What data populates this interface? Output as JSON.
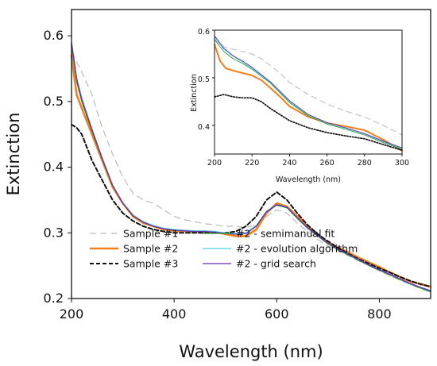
{
  "chart_data": [
    {
      "id": "main",
      "type": "line",
      "xlabel": "Wavelength (nm)",
      "ylabel": "Extinction",
      "xlim": [
        200,
        900
      ],
      "ylim": [
        0.2,
        0.64
      ],
      "xticks": [
        "200",
        "400",
        "600",
        "800"
      ],
      "yticks": [
        "0.2",
        "0.3",
        "0.4",
        "0.5",
        "0.6"
      ],
      "legend_position": "bottom-center",
      "series": [
        {
          "name": "Sample #1",
          "color": "#bbbbbb",
          "dash": "dashed",
          "width": 1.2,
          "x": [
            200,
            210,
            220,
            240,
            260,
            280,
            300,
            320,
            340,
            360,
            380,
            400,
            420,
            440,
            460,
            480,
            500,
            520,
            540,
            560,
            580,
            600,
            620,
            640,
            660,
            680,
            700,
            720,
            740,
            760,
            780,
            800,
            820,
            840,
            860,
            880,
            900
          ],
          "y": [
            0.575,
            0.56,
            0.545,
            0.51,
            0.46,
            0.42,
            0.385,
            0.36,
            0.35,
            0.345,
            0.335,
            0.325,
            0.32,
            0.317,
            0.314,
            0.312,
            0.31,
            0.31,
            0.308,
            0.312,
            0.325,
            0.335,
            0.33,
            0.315,
            0.302,
            0.29,
            0.28,
            0.272,
            0.265,
            0.257,
            0.25,
            0.242,
            0.235,
            0.228,
            0.222,
            0.215,
            0.21
          ]
        },
        {
          "name": "Sample #2",
          "color": "#f57f17",
          "dash": "solid",
          "width": 2.6,
          "x": [
            200,
            210,
            220,
            240,
            260,
            280,
            300,
            320,
            340,
            360,
            380,
            400,
            420,
            440,
            460,
            480,
            500,
            520,
            540,
            560,
            580,
            600,
            620,
            640,
            660,
            680,
            700,
            720,
            740,
            760,
            780,
            800,
            820,
            840,
            860,
            880,
            900
          ],
          "y": [
            0.57,
            0.51,
            0.49,
            0.45,
            0.41,
            0.37,
            0.345,
            0.325,
            0.315,
            0.31,
            0.305,
            0.303,
            0.303,
            0.302,
            0.302,
            0.301,
            0.298,
            0.295,
            0.295,
            0.305,
            0.33,
            0.345,
            0.34,
            0.325,
            0.31,
            0.298,
            0.285,
            0.277,
            0.27,
            0.262,
            0.255,
            0.248,
            0.24,
            0.233,
            0.226,
            0.222,
            0.218
          ]
        },
        {
          "name": "Sample #3",
          "color": "#111111",
          "dash": "dashed-thick",
          "width": 2.0,
          "x": [
            200,
            210,
            220,
            230,
            240,
            260,
            280,
            300,
            320,
            340,
            360,
            380,
            400,
            420,
            440,
            460,
            480,
            500,
            520,
            540,
            560,
            580,
            600,
            620,
            640,
            660,
            680,
            700,
            720,
            740,
            760,
            780,
            800,
            820,
            840,
            860,
            880,
            900
          ],
          "y": [
            0.465,
            0.46,
            0.45,
            0.43,
            0.41,
            0.38,
            0.35,
            0.33,
            0.318,
            0.31,
            0.305,
            0.302,
            0.3,
            0.3,
            0.3,
            0.3,
            0.3,
            0.3,
            0.302,
            0.31,
            0.325,
            0.35,
            0.362,
            0.35,
            0.33,
            0.312,
            0.298,
            0.287,
            0.277,
            0.268,
            0.26,
            0.253,
            0.246,
            0.24,
            0.233,
            0.227,
            0.222,
            0.218
          ]
        },
        {
          "name": "#2 - semimanual fit",
          "color": "#2e9a3a",
          "dash": "solid",
          "width": 1.3,
          "x": [
            200,
            210,
            220,
            240,
            260,
            280,
            300,
            320,
            340,
            360,
            380,
            400,
            420,
            440,
            460,
            480,
            500,
            520,
            540,
            560,
            580,
            600,
            620,
            640,
            660,
            680,
            700,
            720,
            740,
            760,
            780,
            800,
            820,
            840,
            860,
            880,
            900
          ],
          "y": [
            0.585,
            0.53,
            0.5,
            0.455,
            0.412,
            0.372,
            0.345,
            0.326,
            0.316,
            0.31,
            0.306,
            0.304,
            0.303,
            0.302,
            0.302,
            0.301,
            0.299,
            0.298,
            0.299,
            0.31,
            0.332,
            0.342,
            0.338,
            0.322,
            0.307,
            0.295,
            0.283,
            0.274,
            0.266,
            0.258,
            0.25,
            0.243,
            0.236,
            0.229,
            0.222,
            0.216,
            0.21
          ]
        },
        {
          "name": "#2 - evolution algorithm",
          "color": "#45d3e6",
          "dash": "solid",
          "width": 1.3,
          "x": [
            200,
            210,
            220,
            240,
            260,
            280,
            300,
            320,
            340,
            360,
            380,
            400,
            420,
            440,
            460,
            480,
            500,
            520,
            540,
            560,
            580,
            600,
            620,
            640,
            660,
            680,
            700,
            720,
            740,
            760,
            780,
            800,
            820,
            840,
            860,
            880,
            900
          ],
          "y": [
            0.588,
            0.535,
            0.505,
            0.458,
            0.414,
            0.373,
            0.346,
            0.327,
            0.317,
            0.311,
            0.307,
            0.305,
            0.304,
            0.303,
            0.303,
            0.302,
            0.3,
            0.299,
            0.3,
            0.311,
            0.333,
            0.343,
            0.339,
            0.323,
            0.308,
            0.296,
            0.284,
            0.275,
            0.267,
            0.259,
            0.251,
            0.244,
            0.237,
            0.23,
            0.223,
            0.217,
            0.212
          ]
        },
        {
          "name": "#2 - grid search",
          "color": "#6a2fb0",
          "dash": "solid",
          "width": 1.3,
          "x": [
            200,
            210,
            220,
            240,
            260,
            280,
            300,
            320,
            340,
            360,
            380,
            400,
            420,
            440,
            460,
            480,
            500,
            520,
            540,
            560,
            580,
            600,
            620,
            640,
            660,
            680,
            700,
            720,
            740,
            760,
            780,
            800,
            820,
            840,
            860,
            880,
            900
          ],
          "y": [
            0.59,
            0.535,
            0.503,
            0.457,
            0.413,
            0.372,
            0.345,
            0.326,
            0.316,
            0.31,
            0.306,
            0.304,
            0.303,
            0.302,
            0.302,
            0.301,
            0.299,
            0.298,
            0.299,
            0.31,
            0.332,
            0.343,
            0.339,
            0.323,
            0.308,
            0.296,
            0.284,
            0.275,
            0.267,
            0.259,
            0.251,
            0.244,
            0.237,
            0.23,
            0.223,
            0.217,
            0.212
          ]
        }
      ]
    },
    {
      "id": "inset",
      "type": "line",
      "xlabel": "Wavelength (nm)",
      "ylabel": "Extinction",
      "xlim": [
        200,
        300
      ],
      "ylim": [
        0.34,
        0.6
      ],
      "xticks": [
        "200",
        "220",
        "240",
        "260",
        "280",
        "300"
      ],
      "yticks": [
        "0.4",
        "0.5",
        "0.6"
      ],
      "legend_position": "none",
      "series": [
        {
          "name": "Sample #1",
          "color": "#bbbbbb",
          "dash": "dashed",
          "width": 1.0,
          "x": [
            200,
            205,
            210,
            215,
            220,
            225,
            230,
            235,
            240,
            250,
            260,
            270,
            280,
            290,
            300
          ],
          "y": [
            0.58,
            0.565,
            0.56,
            0.555,
            0.55,
            0.54,
            0.525,
            0.51,
            0.49,
            0.465,
            0.445,
            0.43,
            0.418,
            0.4,
            0.38
          ]
        },
        {
          "name": "Sample #2",
          "color": "#f57f17",
          "dash": "solid",
          "width": 2.0,
          "x": [
            200,
            203,
            206,
            210,
            215,
            220,
            225,
            230,
            235,
            240,
            250,
            260,
            270,
            280,
            290,
            300
          ],
          "y": [
            0.57,
            0.535,
            0.52,
            0.515,
            0.51,
            0.505,
            0.495,
            0.478,
            0.46,
            0.44,
            0.418,
            0.405,
            0.398,
            0.39,
            0.37,
            0.347
          ]
        },
        {
          "name": "Sample #3",
          "color": "#111111",
          "dash": "dotted",
          "width": 1.7,
          "x": [
            200,
            205,
            210,
            215,
            220,
            225,
            230,
            240,
            250,
            260,
            270,
            280,
            290,
            300
          ],
          "y": [
            0.46,
            0.465,
            0.46,
            0.458,
            0.458,
            0.45,
            0.435,
            0.41,
            0.395,
            0.385,
            0.378,
            0.372,
            0.36,
            0.348
          ]
        },
        {
          "name": "#2 - semimanual fit",
          "color": "#2e9a3a",
          "dash": "solid",
          "width": 0.9,
          "x": [
            200,
            205,
            210,
            215,
            220,
            230,
            240,
            250,
            260,
            270,
            280,
            290,
            300
          ],
          "y": [
            0.58,
            0.555,
            0.54,
            0.53,
            0.518,
            0.488,
            0.448,
            0.42,
            0.403,
            0.392,
            0.38,
            0.364,
            0.35
          ]
        },
        {
          "name": "#2 - evolution algorithm",
          "color": "#45d3e6",
          "dash": "solid",
          "width": 0.9,
          "x": [
            200,
            205,
            210,
            215,
            220,
            230,
            240,
            250,
            260,
            270,
            280,
            290,
            300
          ],
          "y": [
            0.585,
            0.56,
            0.545,
            0.533,
            0.52,
            0.49,
            0.45,
            0.422,
            0.405,
            0.394,
            0.382,
            0.366,
            0.352
          ]
        },
        {
          "name": "#2 - grid search",
          "color": "#6a2fb0",
          "dash": "solid",
          "width": 0.9,
          "x": [
            200,
            205,
            210,
            215,
            220,
            230,
            240,
            250,
            260,
            270,
            280,
            290,
            300
          ],
          "y": [
            0.588,
            0.562,
            0.546,
            0.535,
            0.522,
            0.491,
            0.452,
            0.423,
            0.406,
            0.395,
            0.383,
            0.367,
            0.353
          ]
        }
      ]
    }
  ]
}
